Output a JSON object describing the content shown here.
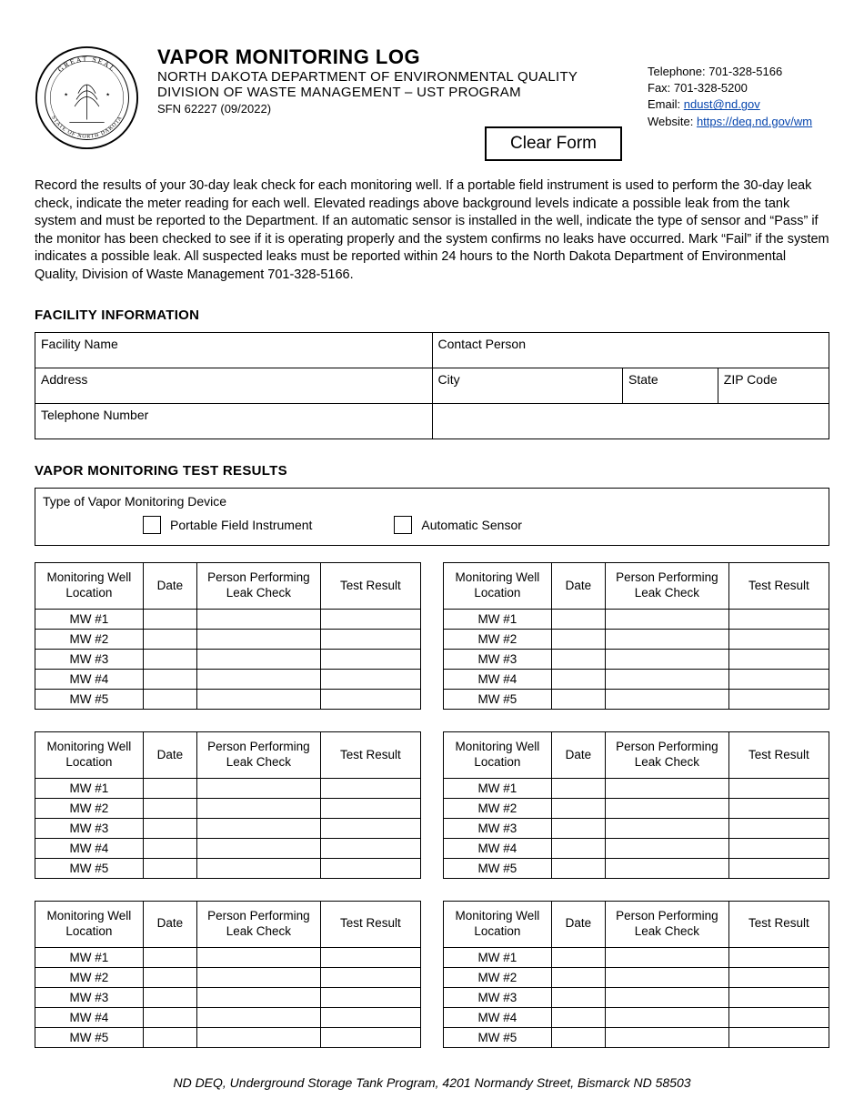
{
  "header": {
    "title": "VAPOR MONITORING LOG",
    "dept": "NORTH DAKOTA DEPARTMENT OF ENVIRONMENTAL QUALITY",
    "division": "DIVISION OF WASTE MANAGEMENT – UST PROGRAM",
    "formno": "SFN 62227 (09/2022)",
    "contact": {
      "telephone_label": "Telephone: 701-328-5166",
      "fax_label": "Fax: 701-328-5200",
      "email_label": "Email: ",
      "email": "ndust@nd.gov",
      "website_label": "Website: ",
      "website": "https://deq.nd.gov/wm"
    },
    "clear_form": "Clear Form"
  },
  "seal": {
    "outer_text_top": "GREAT SEAL",
    "outer_text_bottom": "STATE OF NORTH DAKOTA"
  },
  "instructions": "Record the results of your 30-day leak check for each monitoring well. If a portable field instrument is used to perform the 30-day leak check, indicate the meter reading for each well. Elevated readings above background levels indicate a possible leak from the tank system and must be reported to the Department. If an automatic sensor is installed in the well, indicate the type of sensor and “Pass” if the monitor has been checked to see if it is operating properly and the system confirms no leaks have occurred. Mark “Fail” if the system indicates a possible leak. All suspected leaks must be reported within 24 hours to the North Dakota Department of Environmental Quality, Division of Waste Management 701-328-5166.",
  "facility": {
    "heading": "FACILITY INFORMATION",
    "labels": {
      "name": "Facility Name",
      "contact": "Contact Person",
      "address": "Address",
      "city": "City",
      "state": "State",
      "zip": "ZIP Code",
      "phone": "Telephone Number"
    }
  },
  "results": {
    "heading": "VAPOR MONITORING TEST RESULTS",
    "device_label": "Type of Vapor Monitoring Device",
    "opt_portable": "Portable Field Instrument",
    "opt_automatic": "Automatic Sensor",
    "columns": {
      "loc": "Monitoring Well Location",
      "date": "Date",
      "person": "Person Performing Leak Check",
      "result": "Test Result"
    },
    "rows": [
      "MW #1",
      "MW #2",
      "MW #3",
      "MW #4",
      "MW #5"
    ]
  },
  "footer": "ND DEQ, Underground Storage Tank Program, 4201 Normandy Street, Bismarck ND 58503"
}
